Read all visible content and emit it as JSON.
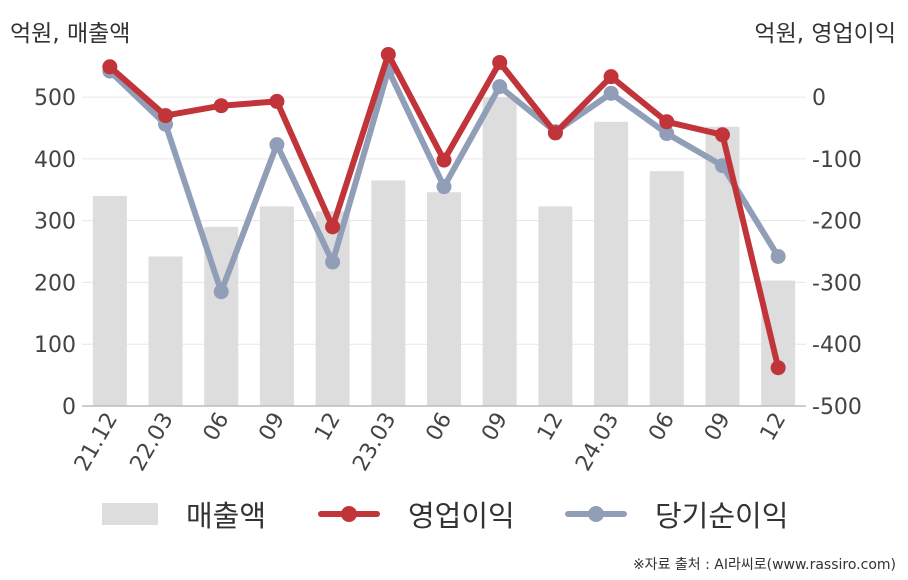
{
  "chart_data": {
    "type": "bar+line",
    "left_unit": "억원, 매출액",
    "right_unit": "억원, 영업이익",
    "categories": [
      "21.12",
      "22.03",
      "06",
      "09",
      "12",
      "23.03",
      "06",
      "09",
      "12",
      "24.03",
      "06",
      "09",
      "12"
    ],
    "left_axis": {
      "ylim": [
        0,
        560
      ],
      "ticks": [
        0,
        100,
        200,
        300,
        400,
        500
      ]
    },
    "right_axis": {
      "ylim": [
        -500,
        60
      ],
      "ticks": [
        -500,
        -400,
        -300,
        -200,
        -100,
        0
      ]
    },
    "grid": true,
    "series": [
      {
        "name": "매출액",
        "type": "bar",
        "axis": "left",
        "color": "#dddddd",
        "values": [
          340,
          242,
          290,
          323,
          315,
          365,
          346,
          500,
          323,
          460,
          380,
          452,
          203
        ]
      },
      {
        "name": "영업이익",
        "type": "line",
        "axis": "right",
        "color": "#c0343a",
        "values": [
          49,
          -30,
          -14,
          -7,
          -210,
          69,
          -102,
          56,
          -58,
          33,
          -40,
          -61,
          -438
        ]
      },
      {
        "name": "당기순이익",
        "type": "line",
        "axis": "right",
        "color": "#919eb8",
        "values": [
          42,
          -44,
          -315,
          -77,
          -267,
          44,
          -145,
          17,
          -56,
          6,
          -59,
          -111,
          -258
        ]
      }
    ],
    "legend_position": "bottom"
  },
  "legend": [
    {
      "label": "매출액",
      "kind": "bar",
      "color": "#dddddd"
    },
    {
      "label": "영업이익",
      "kind": "line",
      "color": "#c0343a"
    },
    {
      "label": "당기순이익",
      "kind": "line",
      "color": "#919eb8"
    }
  ],
  "source": "※자료 출처 : AI라씨로(www.rassiro.com)"
}
